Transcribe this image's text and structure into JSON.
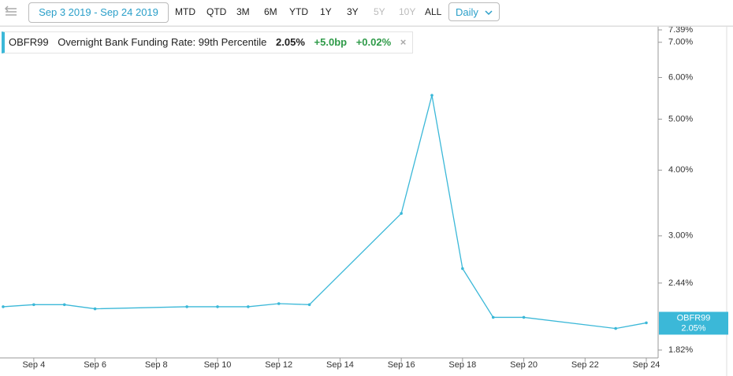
{
  "toolbar": {
    "date_range": "Sep 3 2019 - Sep 24 2019",
    "ranges": [
      {
        "label": "MTD",
        "enabled": true
      },
      {
        "label": "QTD",
        "enabled": true
      },
      {
        "label": "3M",
        "enabled": true
      },
      {
        "label": "6M",
        "enabled": true
      },
      {
        "label": "YTD",
        "enabled": true
      },
      {
        "label": "1Y",
        "enabled": true
      },
      {
        "label": "3Y",
        "enabled": true
      },
      {
        "label": "5Y",
        "enabled": false
      },
      {
        "label": "10Y",
        "enabled": false
      },
      {
        "label": "ALL",
        "enabled": true
      }
    ],
    "interval": "Daily"
  },
  "legend": {
    "symbol": "OBFR99",
    "description": "Overnight Bank Funding Rate: 99th Percentile",
    "last": "2.05%",
    "change_bp": "+5.0bp",
    "change_pct": "+0.02%"
  },
  "chart_data": {
    "type": "line",
    "x": [
      "2019-09-03",
      "2019-09-04",
      "2019-09-05",
      "2019-09-06",
      "2019-09-09",
      "2019-09-10",
      "2019-09-11",
      "2019-09-12",
      "2019-09-13",
      "2019-09-16",
      "2019-09-17",
      "2019-09-18",
      "2019-09-19",
      "2019-09-20",
      "2019-09-23",
      "2019-09-24"
    ],
    "series": [
      {
        "name": "OBFR99",
        "color": "#3bb8d8",
        "values": [
          2.2,
          2.22,
          2.22,
          2.18,
          2.2,
          2.2,
          2.2,
          2.23,
          2.22,
          3.31,
          5.55,
          2.6,
          2.1,
          2.1,
          2.0,
          2.05
        ]
      }
    ],
    "xlim": [
      "2019-09-03",
      "2019-09-24"
    ],
    "xticks": [
      {
        "value": "2019-09-04",
        "label": "Sep 4"
      },
      {
        "value": "2019-09-06",
        "label": "Sep 6"
      },
      {
        "value": "2019-09-08",
        "label": "Sep 8"
      },
      {
        "value": "2019-09-10",
        "label": "Sep 10"
      },
      {
        "value": "2019-09-12",
        "label": "Sep 12"
      },
      {
        "value": "2019-09-14",
        "label": "Sep 14"
      },
      {
        "value": "2019-09-16",
        "label": "Sep 16"
      },
      {
        "value": "2019-09-18",
        "label": "Sep 18"
      },
      {
        "value": "2019-09-20",
        "label": "Sep 20"
      },
      {
        "value": "2019-09-22",
        "label": "Sep 22"
      },
      {
        "value": "2019-09-24",
        "label": "Sep 24"
      }
    ],
    "ylim": [
      1.82,
      7.39
    ],
    "yticks": [
      {
        "value": 1.82,
        "label": "1.82%"
      },
      {
        "value": 2.44,
        "label": "2.44%"
      },
      {
        "value": 3.0,
        "label": "3.00%"
      },
      {
        "value": 4.0,
        "label": "4.00%"
      },
      {
        "value": 5.0,
        "label": "5.00%"
      },
      {
        "value": 6.0,
        "label": "6.00%"
      },
      {
        "value": 7.0,
        "label": "7.00%"
      },
      {
        "value": 7.39,
        "label": "7.39%"
      }
    ],
    "log_y": true,
    "grid": false
  }
}
